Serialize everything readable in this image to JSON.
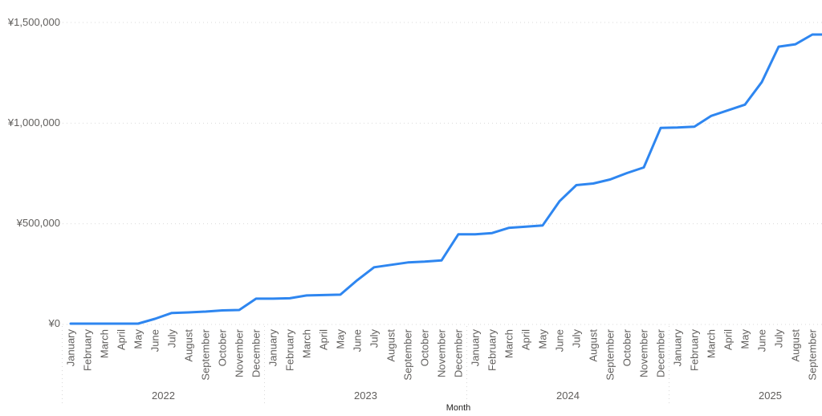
{
  "chart_data": {
    "type": "line",
    "title": "",
    "xlabel": "Month",
    "ylabel": "",
    "ylim": [
      0,
      1500000
    ],
    "grid": "horizontal-dotted",
    "legend": "none",
    "colors": {
      "line": "#2E86F0",
      "axis_text": "#605E5C",
      "axis_title_text": "#252423",
      "gridline": "#D9D9D9"
    },
    "y_ticks": [
      {
        "value": 0,
        "label": "¥0"
      },
      {
        "value": 500000,
        "label": "¥500,000"
      },
      {
        "value": 1000000,
        "label": "¥1,000,000"
      },
      {
        "value": 1500000,
        "label": "¥1,500,000"
      }
    ],
    "x_hierarchy": [
      {
        "year": "2022",
        "months": [
          "January",
          "February",
          "March",
          "April",
          "May",
          "June",
          "July",
          "August",
          "September",
          "October",
          "November",
          "December"
        ],
        "values": [
          4000,
          4000,
          4000,
          4000,
          4000,
          28000,
          57000,
          60000,
          64000,
          70000,
          72000,
          128000
        ]
      },
      {
        "year": "2023",
        "months": [
          "January",
          "February",
          "March",
          "April",
          "May",
          "June",
          "July",
          "August",
          "September",
          "October",
          "November",
          "December"
        ],
        "values": [
          128000,
          130000,
          144000,
          146000,
          148000,
          220000,
          284000,
          296000,
          308000,
          312000,
          318000,
          448000
        ]
      },
      {
        "year": "2024",
        "months": [
          "January",
          "February",
          "March",
          "April",
          "May",
          "June",
          "July",
          "August",
          "September",
          "October",
          "November",
          "December"
        ],
        "values": [
          448000,
          454000,
          480000,
          486000,
          492000,
          612000,
          692000,
          700000,
          720000,
          752000,
          780000,
          976000
        ]
      },
      {
        "year": "2025",
        "months": [
          "January",
          "February",
          "March",
          "April",
          "May",
          "June",
          "July",
          "August",
          "September"
        ],
        "values": [
          978000,
          982000,
          1036000,
          1064000,
          1092000,
          1204000,
          1380000,
          1392000,
          1440000
        ]
      }
    ]
  }
}
